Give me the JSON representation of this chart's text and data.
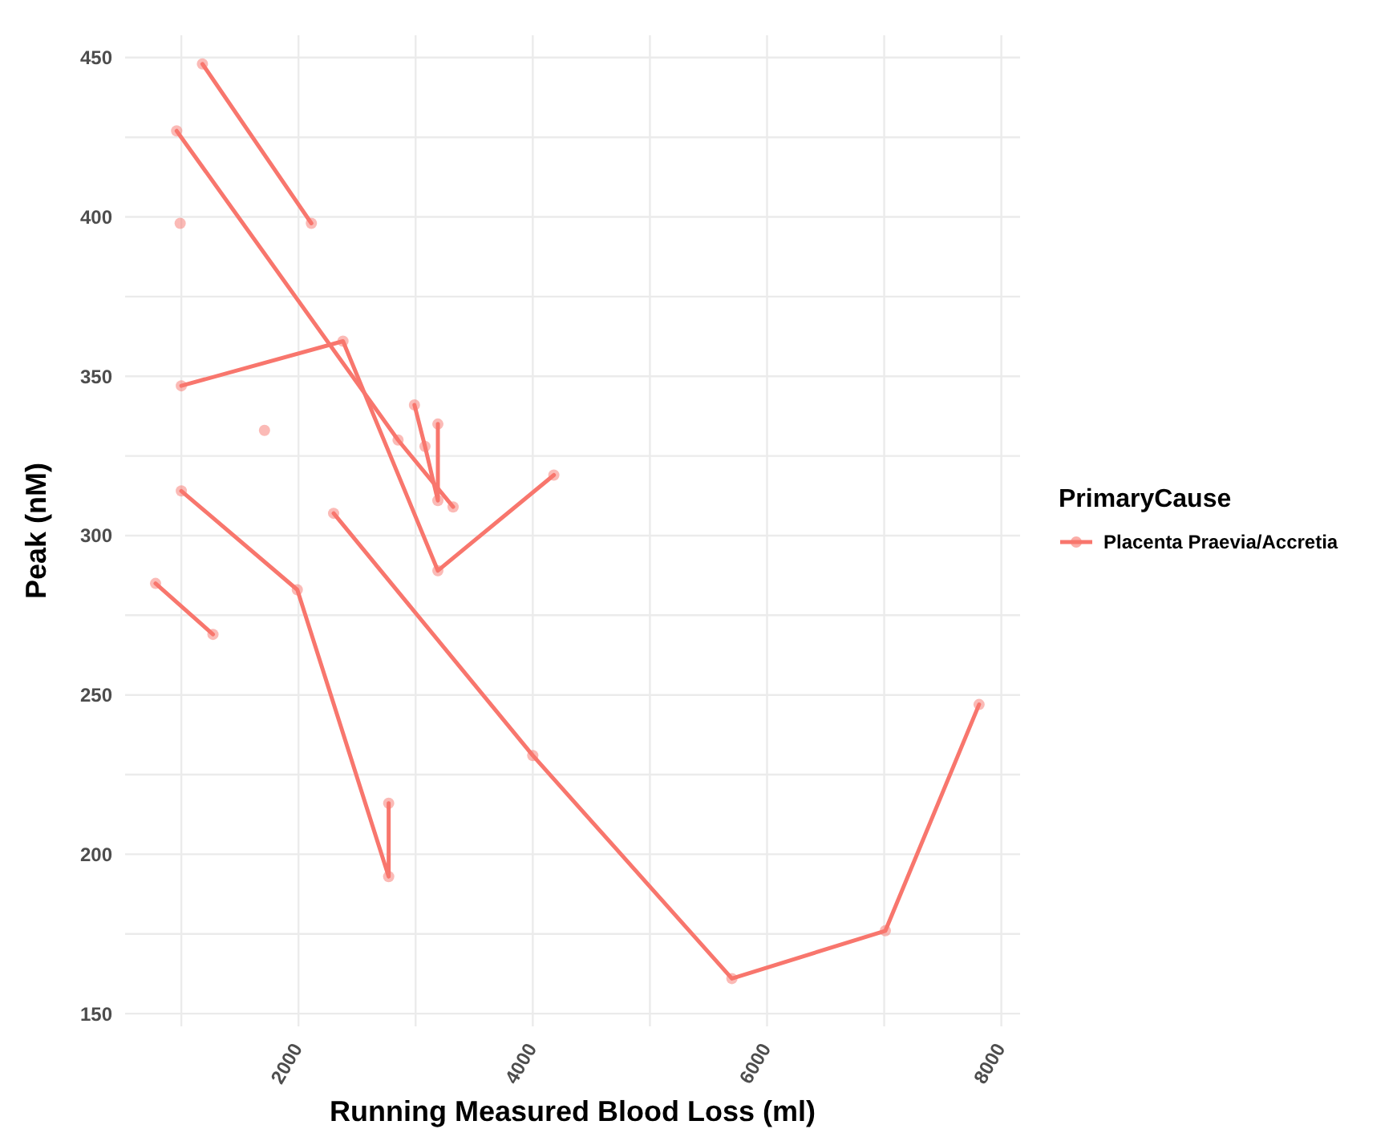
{
  "chart_data": {
    "type": "line",
    "xlabel": "Running Measured Blood Loss (ml)",
    "ylabel": "Peak (nM)",
    "legend_title": "PrimaryCause",
    "legend": "right",
    "grid": true,
    "marker": "circle",
    "line_style": "solid",
    "xlim": [
      520,
      8160
    ],
    "xticks": [
      {
        "value": 1000,
        "label": null
      },
      2000,
      {
        "value": 3000,
        "label": null
      },
      4000,
      {
        "value": 5000,
        "label": null
      },
      6000,
      {
        "value": 7000,
        "label": null
      },
      8000
    ],
    "ylim": [
      146,
      457
    ],
    "yticks": [
      150,
      {
        "value": 175,
        "label": null
      },
      200,
      {
        "value": 225,
        "label": null
      },
      250,
      {
        "value": 275,
        "label": null
      },
      300,
      {
        "value": 325,
        "label": null
      },
      350,
      {
        "value": 375,
        "label": null
      },
      400,
      {
        "value": 425,
        "label": null
      },
      450
    ],
    "series": [
      {
        "name": "Placenta Praevia/Accretia",
        "color": "#f8766d",
        "x": [
          1180,
          2110
        ],
        "values": [
          448,
          398
        ]
      },
      {
        "color": "#f8766d",
        "x": [
          960,
          2850,
          3320
        ],
        "values": [
          427,
          330,
          309
        ]
      },
      {
        "color": "#f8766d",
        "x": [
          1000,
          2380,
          3190,
          4180
        ],
        "values": [
          347,
          361,
          289,
          319
        ]
      },
      {
        "color": "#f8766d",
        "x": [
          2990,
          3080,
          3190,
          3190
        ],
        "values": [
          341,
          328,
          311,
          335
        ]
      },
      {
        "color": "#f8766d",
        "x": [
          990
        ],
        "values": [
          398
        ]
      },
      {
        "color": "#f8766d",
        "x": [
          1710
        ],
        "values": [
          333
        ]
      },
      {
        "color": "#f8766d",
        "x": [
          1000,
          1990,
          2770,
          2770
        ],
        "values": [
          314,
          283,
          193,
          216
        ]
      },
      {
        "color": "#f8766d",
        "x": [
          780,
          1270
        ],
        "values": [
          285,
          269
        ]
      },
      {
        "color": "#f8766d",
        "x": [
          2300,
          4000,
          5700,
          7010,
          7810
        ],
        "values": [
          307,
          231,
          161,
          176,
          247
        ]
      }
    ]
  }
}
